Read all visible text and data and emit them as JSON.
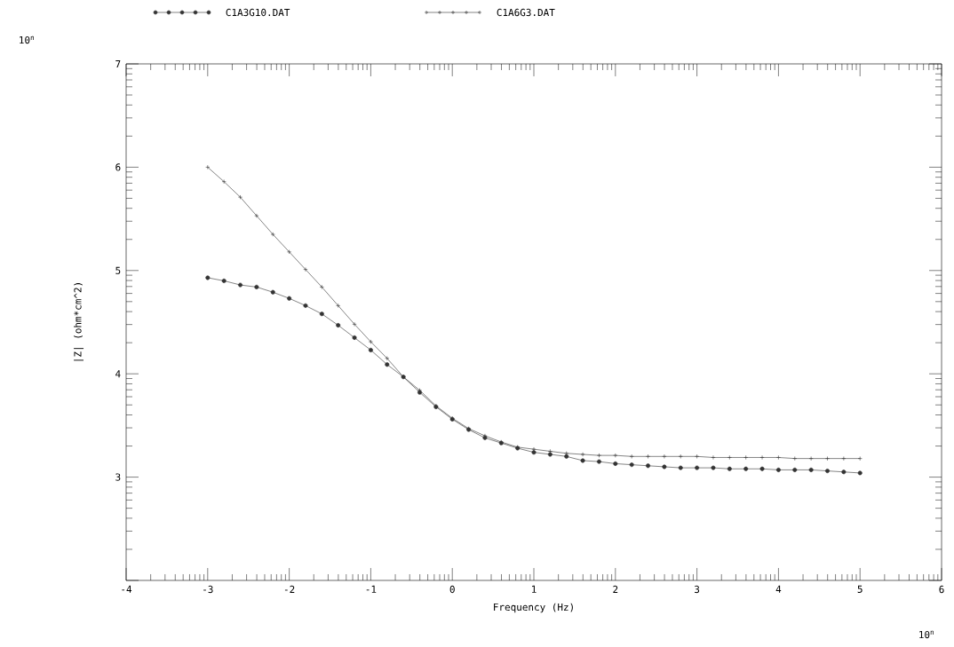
{
  "chart_data": {
    "type": "line",
    "xlabel": "Frequency (Hz)",
    "ylabel": "|Z| (ohm*cm^2)",
    "annotations": [
      "10$^{n}$",
      "10$^{n}$"
    ],
    "x": [
      -3,
      -2.8,
      -2.6,
      -2.4,
      -2.2,
      -2,
      -1.8,
      -1.6,
      -1.4,
      -1.2,
      -1,
      -0.8,
      -0.6,
      -0.4,
      -0.2,
      0,
      0.2,
      0.4,
      0.6,
      0.8,
      1,
      1.2,
      1.4,
      1.6,
      1.8,
      2,
      2.2,
      2.4,
      2.6,
      2.8,
      3,
      3.2,
      3.4,
      3.6,
      3.8,
      4,
      4.2,
      4.4,
      4.6,
      4.8,
      5
    ],
    "series": [
      {
        "name": "C1A3G10.DAT",
        "color": "#333333",
        "marker": "circle",
        "values": [
          4.93,
          4.9,
          4.86,
          4.84,
          4.79,
          4.73,
          4.66,
          4.58,
          4.47,
          4.35,
          4.23,
          4.09,
          3.97,
          3.82,
          3.68,
          3.56,
          3.46,
          3.38,
          3.33,
          3.28,
          3.24,
          3.22,
          3.2,
          3.16,
          3.15,
          3.13,
          3.12,
          3.11,
          3.1,
          3.09,
          3.09,
          3.09,
          3.08,
          3.08,
          3.08,
          3.07,
          3.07,
          3.07,
          3.06,
          3.05,
          3.04
        ]
      },
      {
        "name": "C1A6G3.DAT",
        "color": "#333333",
        "marker": "cross",
        "values": [
          6.0,
          5.86,
          5.71,
          5.53,
          5.35,
          5.18,
          5.01,
          4.84,
          4.66,
          4.48,
          4.31,
          4.15,
          3.97,
          3.84,
          3.69,
          3.57,
          3.47,
          3.4,
          3.34,
          3.29,
          3.27,
          3.25,
          3.23,
          3.22,
          3.21,
          3.21,
          3.2,
          3.2,
          3.2,
          3.2,
          3.2,
          3.19,
          3.19,
          3.19,
          3.19,
          3.19,
          3.18,
          3.18,
          3.18,
          3.18,
          3.18
        ]
      }
    ],
    "xlim": [
      -4,
      6
    ],
    "xticks": [
      -4,
      -3,
      -2,
      -1,
      0,
      1,
      2,
      3,
      4,
      5,
      6
    ],
    "ylim": [
      2,
      7
    ],
    "yticks": [
      {
        "value": 2,
        "label": null
      },
      3,
      4,
      5,
      6,
      7
    ],
    "legend": "top",
    "line_style": "solid",
    "grid": false
  }
}
